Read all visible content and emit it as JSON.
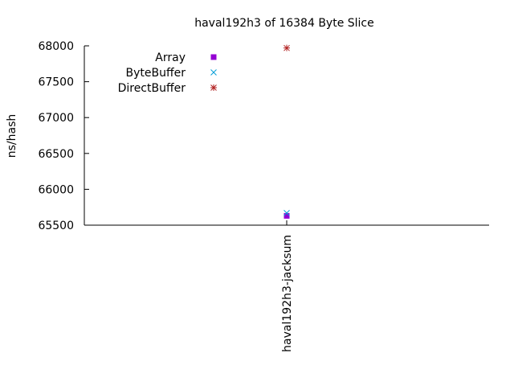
{
  "chart_data": {
    "type": "scatter",
    "title": "haval192h3 of 16384 Byte Slice",
    "xlabel": "",
    "ylabel": "ns/hash",
    "categories": [
      "haval192h3-jacksum"
    ],
    "ylim": [
      65500,
      68000
    ],
    "yticks": [
      65500,
      66000,
      66500,
      67000,
      67500,
      68000
    ],
    "grid": false,
    "legend_position": "top-left",
    "series": [
      {
        "name": "Array",
        "marker": "filled-square",
        "color": "#9400d3",
        "values": [
          65630
        ]
      },
      {
        "name": "ByteBuffer",
        "marker": "x",
        "color": "#009ed7",
        "values": [
          65670
        ]
      },
      {
        "name": "DirectBuffer",
        "marker": "asterisk",
        "color": "#b22222",
        "values": [
          67970
        ]
      }
    ]
  }
}
